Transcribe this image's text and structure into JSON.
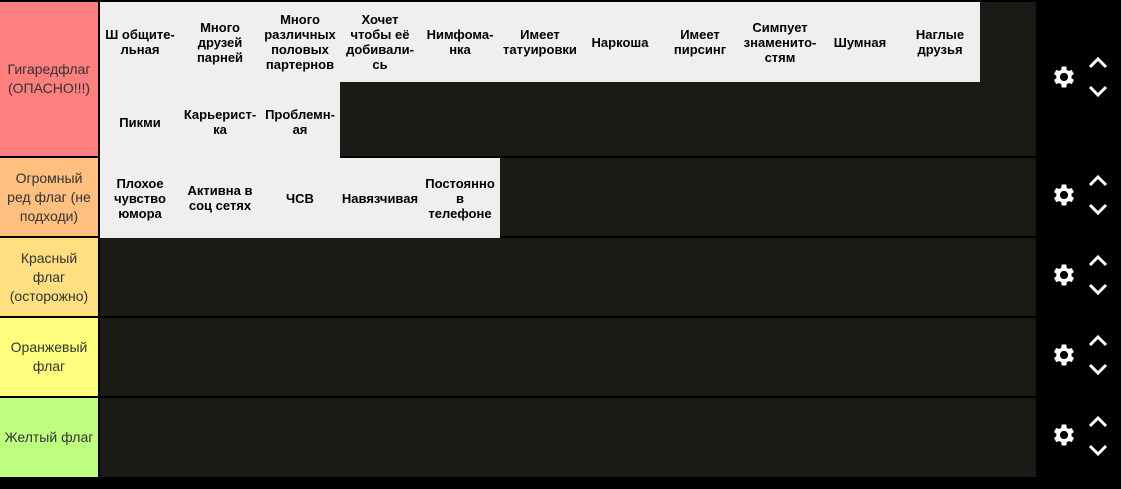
{
  "tiers": [
    {
      "label": "Гигаредфлаг (ОПАСНО!!!)",
      "color": "#ff7f7f",
      "items": [
        "Ш общите-\nльная",
        "Много\nдрузей\nпарней",
        "Много\nразличных\nполовых\nпартернов",
        "Хочет\nчтобы её\nдобивали-\nсь",
        "Нимфома-\nнка",
        "Имеет\nтатуировки",
        "Наркоша",
        "Имеет\nпирсинг",
        "Симпует\nзнаменито-\nстям",
        "Шумная",
        "Наглые\nдрузья",
        "Пикми",
        "Карьерист-\nка",
        "Проблемн-\nая"
      ]
    },
    {
      "label": "Огромный ред флаг (не подходи)",
      "color": "#ffbf7f",
      "items": [
        "Плохое\nчувство\nюмора",
        "Активна в\nсоц сетях",
        "ЧСВ",
        "Навязчивая",
        "Постоянно\nв\nтелефоне"
      ]
    },
    {
      "label": "Красный флаг (осторожно)",
      "color": "#ffdf7f",
      "items": []
    },
    {
      "label": "Оранжевый флаг",
      "color": "#ffff7f",
      "items": []
    },
    {
      "label": "Желтый флаг",
      "color": "#bfff7f",
      "items": []
    }
  ],
  "icons": {
    "settings": "gear-icon",
    "up": "chevron-up-icon",
    "down": "chevron-down-icon"
  }
}
